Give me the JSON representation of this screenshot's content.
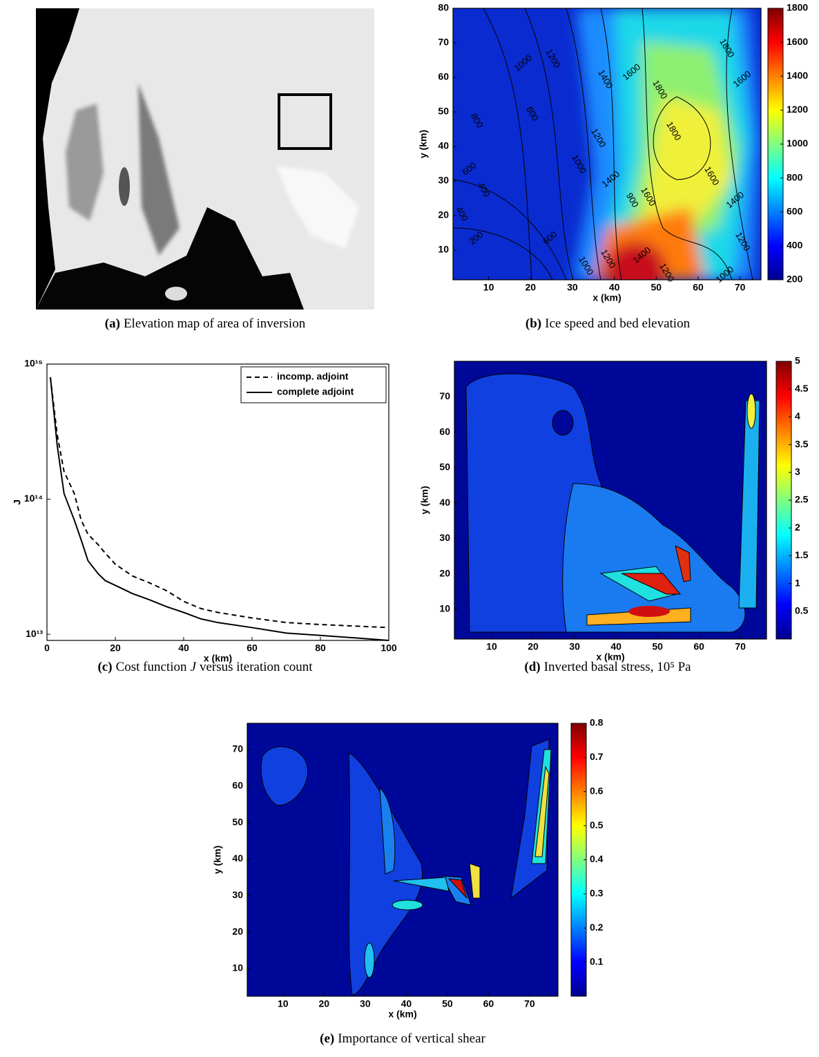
{
  "chart_data": [
    {
      "type": "image",
      "caption_label": "(a)",
      "caption": "Elevation map of area of inversion"
    },
    {
      "type": "contour",
      "caption_label": "(b)",
      "caption": "Ice speed and bed elevation",
      "x_label": "x (km)",
      "y_label": "y (km)",
      "xlim": [
        1.5,
        75
      ],
      "xticks": [
        10,
        20,
        30,
        40,
        50,
        60,
        70
      ],
      "ylim": [
        1.4,
        80
      ],
      "yticks": [
        10,
        20,
        30,
        40,
        50,
        60,
        70,
        80
      ],
      "colorbar_lim": [
        200,
        1800
      ],
      "colorbar_ticks": [
        200,
        400,
        600,
        800,
        1000,
        1200,
        1400,
        1600,
        1800
      ],
      "contour_labels": [
        1000,
        1200,
        1400,
        1600,
        1800,
        1800,
        1600,
        800,
        800,
        600,
        400,
        400,
        200,
        1000,
        1200,
        1400,
        1800,
        1600,
        1400,
        1200,
        900,
        600,
        1000,
        1200,
        1400,
        1600,
        1200,
        1000
      ]
    },
    {
      "type": "line",
      "caption_label": "(c)",
      "caption": "Cost function",
      "caption_symbol": "J",
      "caption_tail": "versus iteration count",
      "x_label": "x (km)",
      "y_label": "J",
      "log_y": true,
      "xlim": [
        0,
        100
      ],
      "xticks": [
        0,
        20,
        40,
        60,
        80,
        100
      ],
      "ylim": [
        9000000000000.0,
        1000000000000000.0
      ],
      "yticks": [
        {
          "value": 10000000000000.0,
          "label": "10¹³"
        },
        {
          "value": 100000000000000.0,
          "label": "10¹⁴"
        },
        {
          "value": 1000000000000000.0,
          "label": "10¹⁵"
        }
      ],
      "legend": "upper right",
      "x": [
        1,
        3,
        5,
        8,
        10,
        12,
        15,
        17,
        20,
        25,
        30,
        35,
        40,
        45,
        50,
        60,
        70,
        80,
        90,
        100
      ],
      "series": [
        {
          "name": "incomp. adjoint",
          "color": "#000000",
          "line_style": "dashed",
          "values": [
            800000000000000.0,
            300000000000000.0,
            160000000000000.0,
            110000000000000.0,
            70000000000000.0,
            55000000000000.0,
            46000000000000.0,
            40000000000000.0,
            33000000000000.0,
            27000000000000.0,
            24000000000000.0,
            21000000000000.0,
            17500000000000.0,
            15500000000000.0,
            14500000000000.0,
            13200000000000.0,
            12200000000000.0,
            11800000000000.0,
            11500000000000.0,
            11200000000000.0
          ]
        },
        {
          "name": "complete adjoint",
          "color": "#000000",
          "line_style": "solid",
          "values": [
            800000000000000.0,
            250000000000000.0,
            110000000000000.0,
            70000000000000.0,
            50000000000000.0,
            35000000000000.0,
            28000000000000.0,
            25000000000000.0,
            23000000000000.0,
            20000000000000.0,
            18000000000000.0,
            16000000000000.0,
            14500000000000.0,
            13000000000000.0,
            12200000000000.0,
            11200000000000.0,
            10200000000000.0,
            9800000000000.0,
            9400000000000.0,
            9000000000000.0
          ]
        }
      ]
    },
    {
      "type": "contour",
      "caption_label": "(d)",
      "caption": "Inverted basal stress, 10⁵ Pa",
      "x_label": "x (km)",
      "y_label": "y (km)",
      "xlim": [
        1,
        76.3
      ],
      "xticks": [
        10,
        20,
        30,
        40,
        50,
        60,
        70
      ],
      "ylim": [
        1.6,
        80
      ],
      "yticks": [
        10,
        20,
        30,
        40,
        50,
        60,
        70
      ],
      "colorbar_lim": [
        0,
        5
      ],
      "colorbar_ticks": [
        0.5,
        1,
        1.5,
        2,
        2.5,
        3,
        3.5,
        4,
        4.5,
        5
      ]
    },
    {
      "type": "contour",
      "caption_label": "(e)",
      "caption": "Importance of vertical shear",
      "x_label": "x (km)",
      "y_label": "y (km)",
      "xlim": [
        1.3,
        76.9
      ],
      "xticks": [
        10,
        20,
        30,
        40,
        50,
        60,
        70
      ],
      "ylim": [
        2.4,
        77.2
      ],
      "yticks": [
        10,
        20,
        30,
        40,
        50,
        60,
        70
      ],
      "colorbar_lim": [
        0,
        0.8
      ],
      "colorbar_ticks": [
        0.1,
        0.2,
        0.3,
        0.4,
        0.5,
        0.6,
        0.7,
        0.8
      ]
    }
  ]
}
